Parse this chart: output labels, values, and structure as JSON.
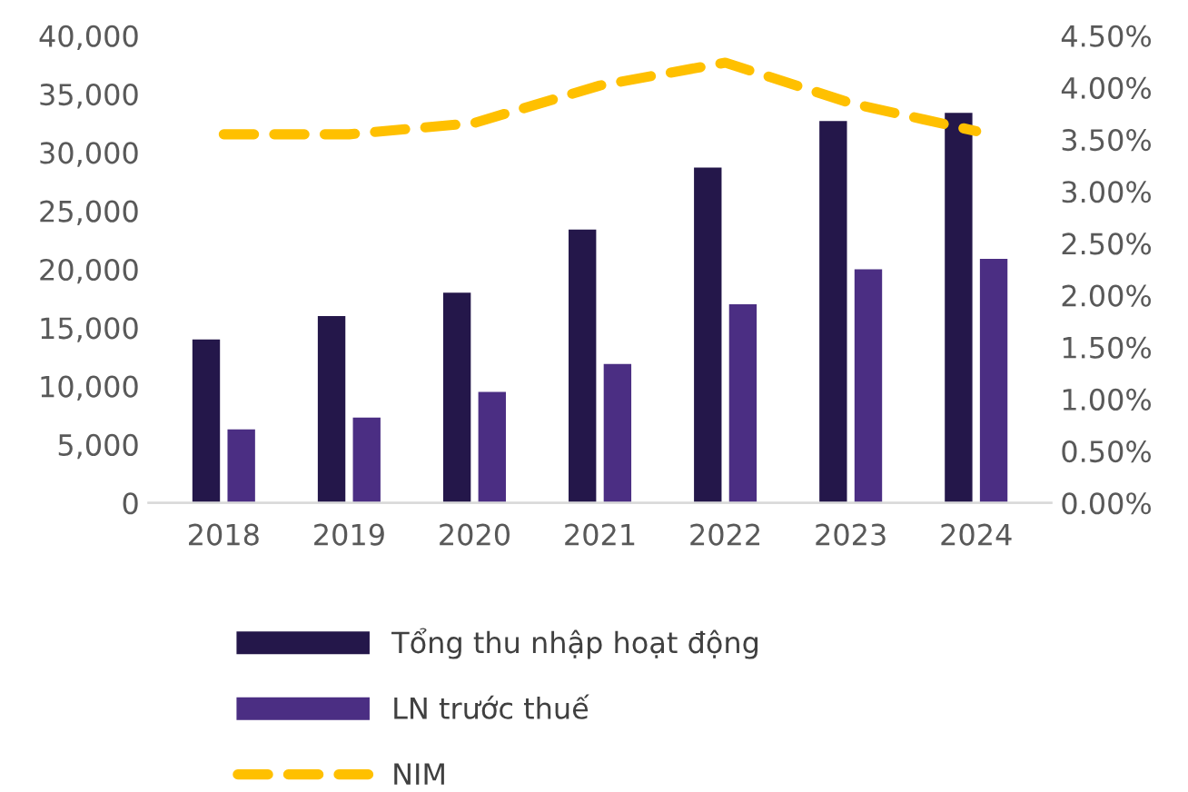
{
  "chart_data": {
    "type": "bar",
    "categories": [
      "2018",
      "2019",
      "2020",
      "2021",
      "2022",
      "2023",
      "2024"
    ],
    "series": [
      {
        "name": "Tổng thu nhập hoạt động",
        "color": "#24174a",
        "values": [
          14000,
          16000,
          18000,
          23400,
          28700,
          32700,
          33400
        ]
      },
      {
        "name": "LN trước thuế",
        "color": "#4b2e83",
        "values": [
          6300,
          7300,
          9500,
          11900,
          17000,
          20000,
          20900
        ]
      },
      {
        "name": "NIM",
        "type": "line",
        "axis": "y2",
        "color": "#ffc000",
        "line_style": "dashed",
        "values": [
          3.55,
          3.55,
          3.66,
          4.02,
          4.24,
          3.85,
          3.58
        ]
      }
    ],
    "ylim": [
      0,
      40000
    ],
    "yticks": [
      {
        "value": 0,
        "label": "0"
      },
      {
        "value": 5000,
        "label": "5,000"
      },
      {
        "value": 10000,
        "label": "10,000"
      },
      {
        "value": 15000,
        "label": "15,000"
      },
      {
        "value": 20000,
        "label": "20,000"
      },
      {
        "value": 25000,
        "label": "25,000"
      },
      {
        "value": 30000,
        "label": "30,000"
      },
      {
        "value": 35000,
        "label": "35,000"
      },
      {
        "value": 40000,
        "label": "40,000"
      }
    ],
    "y2lim": [
      0,
      4.5
    ],
    "y2ticks": [
      {
        "value": 0,
        "label": "0.00%"
      },
      {
        "value": 0.5,
        "label": "0.50%"
      },
      {
        "value": 1,
        "label": "1.00%"
      },
      {
        "value": 1.5,
        "label": "1.50%"
      },
      {
        "value": 2,
        "label": "2.00%"
      },
      {
        "value": 2.5,
        "label": "2.50%"
      },
      {
        "value": 3,
        "label": "3.00%"
      },
      {
        "value": 3.5,
        "label": "3.50%"
      },
      {
        "value": 4,
        "label": "4.00%"
      },
      {
        "value": 4.5,
        "label": "4.50%"
      }
    ],
    "grid": false,
    "legend": "bottom"
  }
}
